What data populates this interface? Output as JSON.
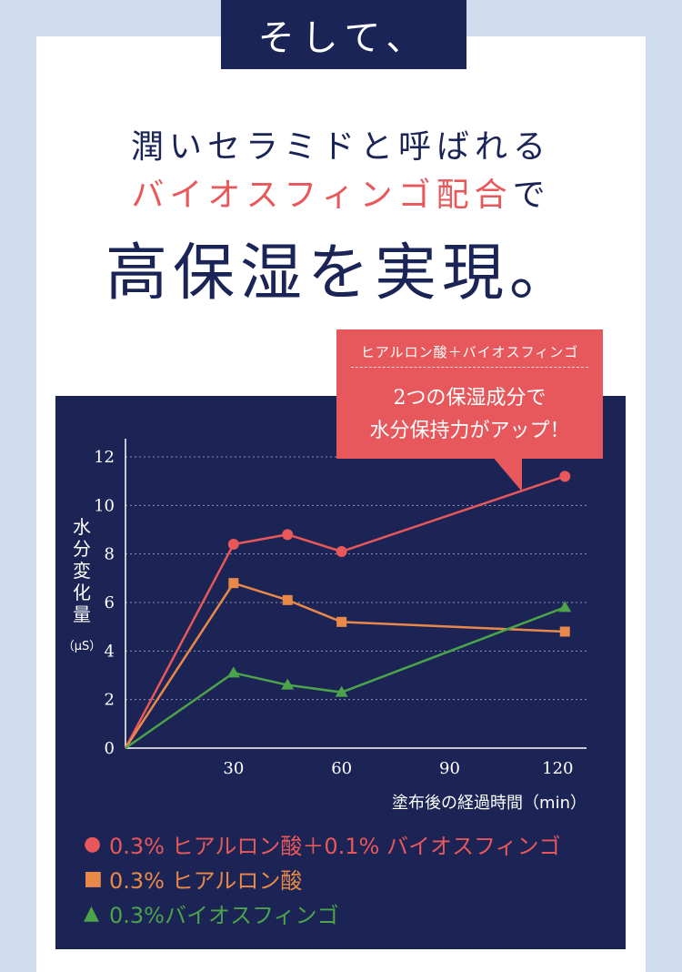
{
  "header": {
    "title": "そして、"
  },
  "intro": {
    "line1": "潤いセラミドと呼ばれる",
    "line2_accent": "バイオスフィンゴ配合",
    "line2_tail": "で",
    "headline": "高保湿を実現。"
  },
  "callout": {
    "top": "ヒアルロン酸＋バイオスフィンゴ",
    "main1": "2つの保湿成分で",
    "main2": "水分保持力がアップ！"
  },
  "colors": {
    "navy": "#1a2456",
    "accent_red": "#e8575a",
    "series_red": "#e8575a",
    "series_orange": "#e8894a",
    "series_green": "#4ba34a"
  },
  "chart_data": {
    "type": "line",
    "ylabel": "水分変化量",
    "yunit": "（μS）",
    "xlabel": "塗布後の経過時間（min）",
    "ylim": [
      0,
      12
    ],
    "yticks": [
      0,
      2,
      4,
      6,
      8,
      10,
      12
    ],
    "xticks": [
      30,
      60,
      90,
      120
    ],
    "grid": true,
    "series": [
      {
        "name": "0.3% ヒアルロン酸＋0.1% バイオスフィンゴ",
        "marker": "circle",
        "color": "#e8575a",
        "x": [
          0,
          30,
          45,
          60,
          122
        ],
        "y": [
          0,
          8.4,
          8.8,
          8.1,
          11.2
        ]
      },
      {
        "name": "0.3% ヒアルロン酸",
        "marker": "square",
        "color": "#e8894a",
        "x": [
          0,
          30,
          45,
          60,
          122
        ],
        "y": [
          0,
          6.8,
          6.1,
          5.2,
          4.8
        ]
      },
      {
        "name": "0.3%バイオスフィンゴ",
        "marker": "triangle",
        "color": "#4ba34a",
        "x": [
          0,
          30,
          45,
          60,
          122
        ],
        "y": [
          0,
          3.1,
          2.6,
          2.3,
          5.8
        ]
      }
    ],
    "legend": [
      {
        "symbol": "●",
        "label": "0.3% ヒアルロン酸＋0.1% バイオスフィンゴ",
        "color": "#e8575a"
      },
      {
        "symbol": "■",
        "label": "0.3% ヒアルロン酸",
        "color": "#e8894a"
      },
      {
        "symbol": "▲",
        "label": "0.3%バイオスフィンゴ",
        "color": "#4ba34a"
      }
    ]
  }
}
